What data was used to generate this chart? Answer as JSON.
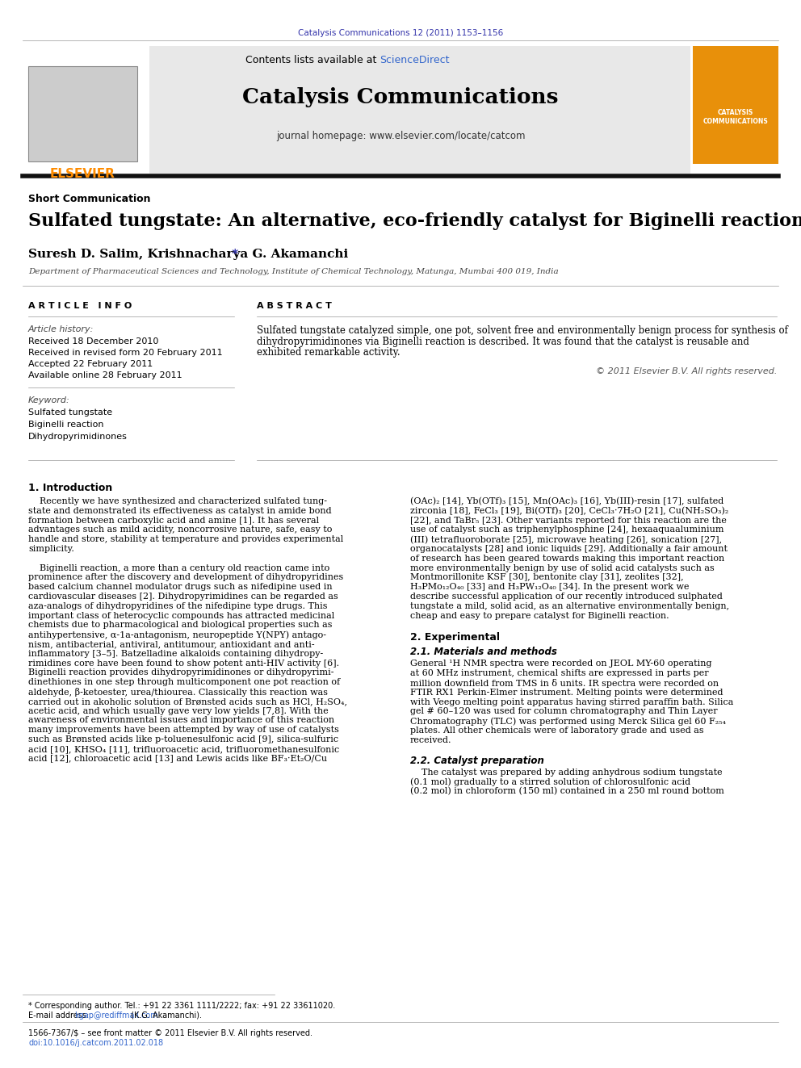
{
  "journal_ref": "Catalysis Communications 12 (2011) 1153–1156",
  "journal_ref_color": "#3333aa",
  "contents_text": "Contents lists available at ",
  "sciencedirect_text": "ScienceDirect",
  "sciencedirect_color": "#3366cc",
  "journal_name": "Catalysis Communications",
  "homepage_text": "journal homepage: www.elsevier.com/locate/catcom",
  "elsevier_color": "#FF8C00",
  "header_bg": "#e8e8e8",
  "section_type": "Short Communication",
  "title": "Sulfated tungstate: An alternative, eco-friendly catalyst for Biginelli reaction",
  "authors": "Suresh D. Salim, Krishnacharya G. Akamanchi",
  "affiliation": "Department of Pharmaceutical Sciences and Technology, Institute of Chemical Technology, Matunga, Mumbai 400 019, India",
  "article_info_label": "A R T I C L E   I N F O",
  "abstract_label": "A B S T R A C T",
  "article_history_label": "Article history:",
  "received": "Received 18 December 2010",
  "revised": "Received in revised form 20 February 2011",
  "accepted": "Accepted 22 February 2011",
  "available": "Available online 28 February 2011",
  "keyword_label": "Keyword:",
  "keywords": [
    "Sulfated tungstate",
    "Biginelli reaction",
    "Dihydropyrimidinones"
  ],
  "abstract_text_lines": [
    "Sulfated tungstate catalyzed simple, one pot, solvent free and environmentally benign process for synthesis of",
    "dihydropyrimidinones via Biginelli reaction is described. It was found that the catalyst is reusable and",
    "exhibited remarkable activity."
  ],
  "copyright": "© 2011 Elsevier B.V. All rights reserved.",
  "intro_heading": "1. Introduction",
  "intro_col1_lines": [
    "    Recently we have synthesized and characterized sulfated tung-",
    "state and demonstrated its effectiveness as catalyst in amide bond",
    "formation between carboxylic acid and amine [1]. It has several",
    "advantages such as mild acidity, noncorrosive nature, safe, easy to",
    "handle and store, stability at temperature and provides experimental",
    "simplicity.",
    "",
    "    Biginelli reaction, a more than a century old reaction came into",
    "prominence after the discovery and development of dihydropyridines",
    "based calcium channel modulator drugs such as nifedipine used in",
    "cardiovascular diseases [2]. Dihydropyrimidines can be regarded as",
    "aza-analogs of dihydropyridines of the nifedipine type drugs. This",
    "important class of heterocyclic compounds has attracted medicinal",
    "chemists due to pharmacological and biological properties such as",
    "antihypertensive, α-1a-antagonism, neuropeptide Y(NPY) antago-",
    "nism, antibacterial, antiviral, antitumour, antioxidant and anti-",
    "inflammatory [3–5]. Batzelladine alkaloids containing dihydropy-",
    "rimidines core have been found to show potent anti-HIV activity [6].",
    "Biginelli reaction provides dihydropyrimidinones or dihydropyrimi-",
    "dinethiones in one step through multicomponent one pot reaction of",
    "aldehyde, β-ketoester, urea/thiourea. Classically this reaction was",
    "carried out in akoholic solution of Brønsted acids such as HCl, H₂SO₄,",
    "acetic acid, and which usually gave very low yields [7,8]. With the",
    "awareness of environmental issues and importance of this reaction",
    "many improvements have been attempted by way of use of catalysts",
    "such as Brønsted acids like p-toluenesulfonic acid [9], silica-sulfuric",
    "acid [10], KHSO₄ [11], trifluoroacetic acid, trifluoromethanesulfonic",
    "acid [12], chloroacetic acid [13] and Lewis acids like BF₃·Et₂O/Cu"
  ],
  "intro_col2_lines": [
    "(OAc)₂ [14], Yb(OTf)₃ [15], Mn(OAc)₃ [16], Yb(III)-resin [17], sulfated",
    "zirconia [18], FeCl₃ [19], Bi(OTf)₃ [20], CeCl₃·7H₂O [21], Cu(NH₂SO₃)₂",
    "[22], and TaBr₅ [23]. Other variants reported for this reaction are the",
    "use of catalyst such as triphenylphosphine [24], hexaaquaaluminium",
    "(III) tetrafluoroborate [25], microwave heating [26], sonication [27],",
    "organocatalysts [28] and ionic liquids [29]. Additionally a fair amount",
    "of research has been geared towards making this important reaction",
    "more environmentally benign by use of solid acid catalysts such as",
    "Montmorillonite KSF [30], bentonite clay [31], zeolites [32],",
    "H₃PMo₁₂O₄₀ [33] and H₃PW₁₂O₄₀ [34]. In the present work we",
    "describe successful application of our recently introduced sulphated",
    "tungstate a mild, solid acid, as an alternative environmentally benign,",
    "cheap and easy to prepare catalyst for Biginelli reaction."
  ],
  "experimental_heading": "2. Experimental",
  "materials_heading": "2.1. Materials and methods",
  "mat_lines": [
    "General ¹H NMR spectra were recorded on JEOL MY-60 operating",
    "at 60 MHz instrument, chemical shifts are expressed in parts per",
    "million downfield from TMS in δ units. IR spectra were recorded on",
    "FTIR RX1 Perkin-Elmer instrument. Melting points were determined",
    "with Veego melting point apparatus having stirred paraffin bath. Silica",
    "gel # 60–120 was used for column chromatography and Thin Layer",
    "Chromatography (TLC) was performed using Merck Silica gel 60 F₂₅₄",
    "plates. All other chemicals were of laboratory grade and used as",
    "received."
  ],
  "catalyst_heading": "2.2. Catalyst preparation",
  "cat_lines": [
    "    The catalyst was prepared by adding anhydrous sodium tungstate",
    "(0.1 mol) gradually to a stirred solution of chlorosulfonic acid",
    "(0.2 mol) in chloroform (150 ml) contained in a 250 ml round bottom"
  ],
  "footnote1": "* Corresponding author. Tel.: +91 22 3361 1111/2222; fax: +91 22 33611020.",
  "footnote2_pre": "E-mail address: ",
  "footnote2_email": "kgap@rediffmail.com",
  "footnote2_post": " (K.G. Akamanchi).",
  "footnote3": "1566-7367/$ – see front matter © 2011 Elsevier B.V. All rights reserved.",
  "footnote4": "doi:10.1016/j.catcom.2011.02.018",
  "bg_color": "#ffffff",
  "text_color": "#000000"
}
